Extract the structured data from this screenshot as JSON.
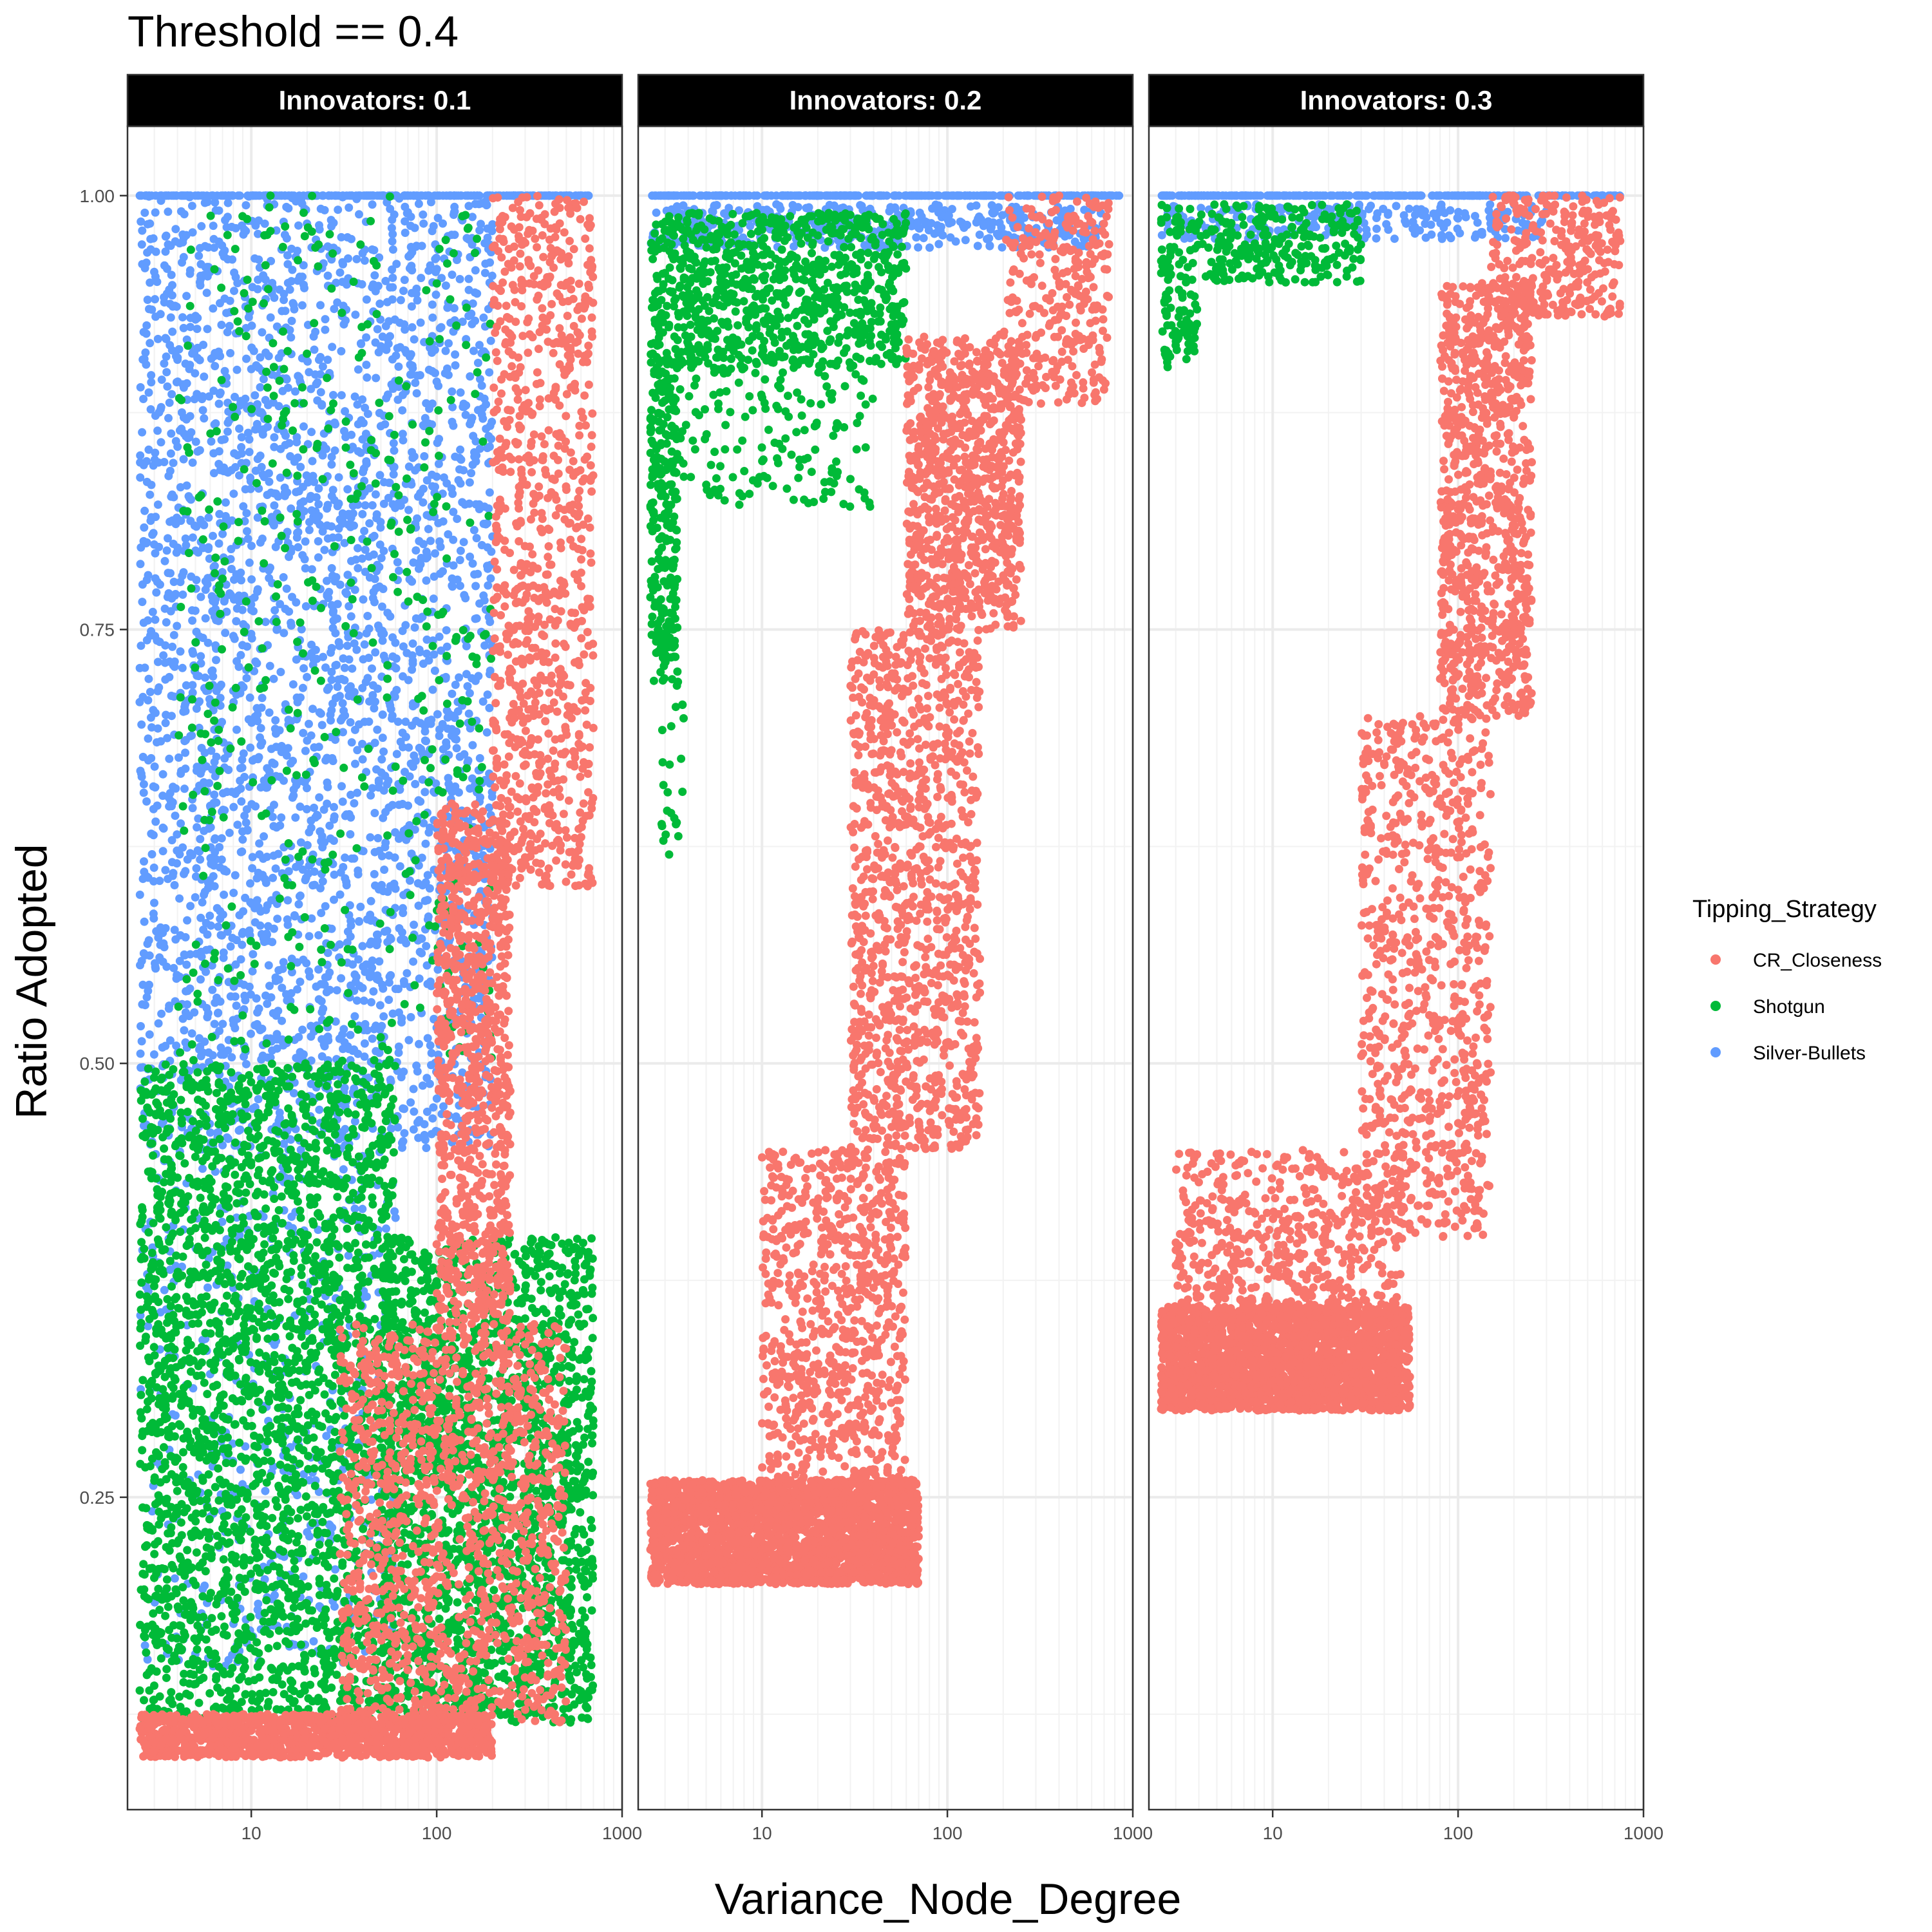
{
  "chart_data": {
    "type": "scatter",
    "title": "Threshold == 0.4",
    "xlabel": "Variance_Node_Degree",
    "ylabel": "Ratio Adopted",
    "x_scale": "log10",
    "xlim": [
      2.15,
      1000
    ],
    "ylim": [
      0.07,
      1.04
    ],
    "x_ticks": [
      10,
      100,
      1000
    ],
    "x_tick_labels": [
      "10",
      "100",
      "1000"
    ],
    "y_ticks": [
      0.25,
      0.5,
      0.75,
      1.0
    ],
    "y_tick_labels": [
      "0.25",
      "0.50",
      "0.75",
      "1.00"
    ],
    "grid": true,
    "legend": {
      "title": "Tipping_Strategy",
      "position": "right",
      "entries": [
        {
          "name": "CR_Closeness",
          "color": "#F8766D"
        },
        {
          "name": "Shotgun",
          "color": "#00BA38"
        },
        {
          "name": "Silver-Bullets",
          "color": "#619CFF"
        }
      ]
    },
    "panels": [
      {
        "label": "Innovators: 0.1",
        "series": [
          {
            "name": "Silver-Bullets",
            "regions": [
              {
                "x": [
                  2.5,
                  200
                ],
                "y": [
                  0.45,
                  1.0
                ],
                "n": 3200
              },
              {
                "x": [
                  2.5,
                  700
                ],
                "y": [
                  1.0,
                  1.0
                ],
                "n": 260
              },
              {
                "x": [
                  2.5,
                  60
                ],
                "y": [
                  0.15,
                  0.45
                ],
                "n": 500
              }
            ]
          },
          {
            "name": "Shotgun",
            "regions": [
              {
                "x": [
                  2.5,
                  60
                ],
                "y": [
                  0.12,
                  0.5
                ],
                "n": 2600
              },
              {
                "x": [
                  50,
                  700
                ],
                "y": [
                  0.12,
                  0.4
                ],
                "n": 2000
              },
              {
                "x": [
                  4,
                  200
                ],
                "y": [
                  0.5,
                  1.0
                ],
                "n": 450
              }
            ]
          },
          {
            "name": "CR_Closeness",
            "regions": [
              {
                "x": [
                  2.5,
                  200
                ],
                "y": [
                  0.1,
                  0.125
                ],
                "n": 1200
              },
              {
                "x": [
                  30,
                  500
                ],
                "y": [
                  0.12,
                  0.35
                ],
                "n": 1300
              },
              {
                "x": [
                  100,
                  250
                ],
                "y": [
                  0.35,
                  0.65
                ],
                "n": 900
              },
              {
                "x": [
                  200,
                  700
                ],
                "y": [
                  0.6,
                  1.0
                ],
                "n": 900
              }
            ]
          }
        ]
      },
      {
        "label": "Innovators: 0.2",
        "series": [
          {
            "name": "Silver-Bullets",
            "regions": [
              {
                "x": [
                  2.5,
                  850
                ],
                "y": [
                  1.0,
                  1.0
                ],
                "n": 300
              },
              {
                "x": [
                  2.5,
                  700
                ],
                "y": [
                  0.97,
                  0.995
                ],
                "n": 450
              }
            ]
          },
          {
            "name": "Shotgun",
            "regions": [
              {
                "x": [
                  2.5,
                  60
                ],
                "y": [
                  0.9,
                  0.99
                ],
                "n": 900
              },
              {
                "x": [
                  2.5,
                  3.5
                ],
                "y": [
                  0.72,
                  0.9
                ],
                "n": 250
              },
              {
                "x": [
                  3.5,
                  40
                ],
                "y": [
                  0.82,
                  0.9
                ],
                "n": 150
              },
              {
                "x": [
                  2.8,
                  3.8
                ],
                "y": [
                  0.62,
                  0.72
                ],
                "n": 25
              }
            ]
          },
          {
            "name": "CR_Closeness",
            "regions": [
              {
                "x": [
                  2.5,
                  70
                ],
                "y": [
                  0.2,
                  0.26
                ],
                "n": 2600
              },
              {
                "x": [
                  10,
                  60
                ],
                "y": [
                  0.25,
                  0.45
                ],
                "n": 800
              },
              {
                "x": [
                  30,
                  150
                ],
                "y": [
                  0.45,
                  0.75
                ],
                "n": 1100
              },
              {
                "x": [
                  60,
                  250
                ],
                "y": [
                  0.75,
                  0.92
                ],
                "n": 900
              },
              {
                "x": [
                  200,
                  750
                ],
                "y": [
                  0.88,
                  1.0
                ],
                "n": 300
              }
            ]
          }
        ]
      },
      {
        "label": "Innovators: 0.3",
        "series": [
          {
            "name": "Silver-Bullets",
            "regions": [
              {
                "x": [
                  2.5,
                  750
                ],
                "y": [
                  1.0,
                  1.0
                ],
                "n": 280
              },
              {
                "x": [
                  2.5,
                  300
                ],
                "y": [
                  0.975,
                  0.995
                ],
                "n": 220
              }
            ]
          },
          {
            "name": "Shotgun",
            "regions": [
              {
                "x": [
                  2.5,
                  30
                ],
                "y": [
                  0.95,
                  0.995
                ],
                "n": 300
              },
              {
                "x": [
                  2.5,
                  4
                ],
                "y": [
                  0.9,
                  0.95
                ],
                "n": 60
              }
            ]
          },
          {
            "name": "CR_Closeness",
            "regions": [
              {
                "x": [
                  2.5,
                  55
                ],
                "y": [
                  0.3,
                  0.36
                ],
                "n": 2400
              },
              {
                "x": [
                  3,
                  50
                ],
                "y": [
                  0.36,
                  0.45
                ],
                "n": 500
              },
              {
                "x": [
                  30,
                  150
                ],
                "y": [
                  0.4,
                  0.7
                ],
                "n": 800
              },
              {
                "x": [
                  80,
                  250
                ],
                "y": [
                  0.7,
                  0.95
                ],
                "n": 900
              },
              {
                "x": [
                  150,
                  750
                ],
                "y": [
                  0.93,
                  1.0
                ],
                "n": 300
              }
            ]
          }
        ]
      }
    ]
  }
}
